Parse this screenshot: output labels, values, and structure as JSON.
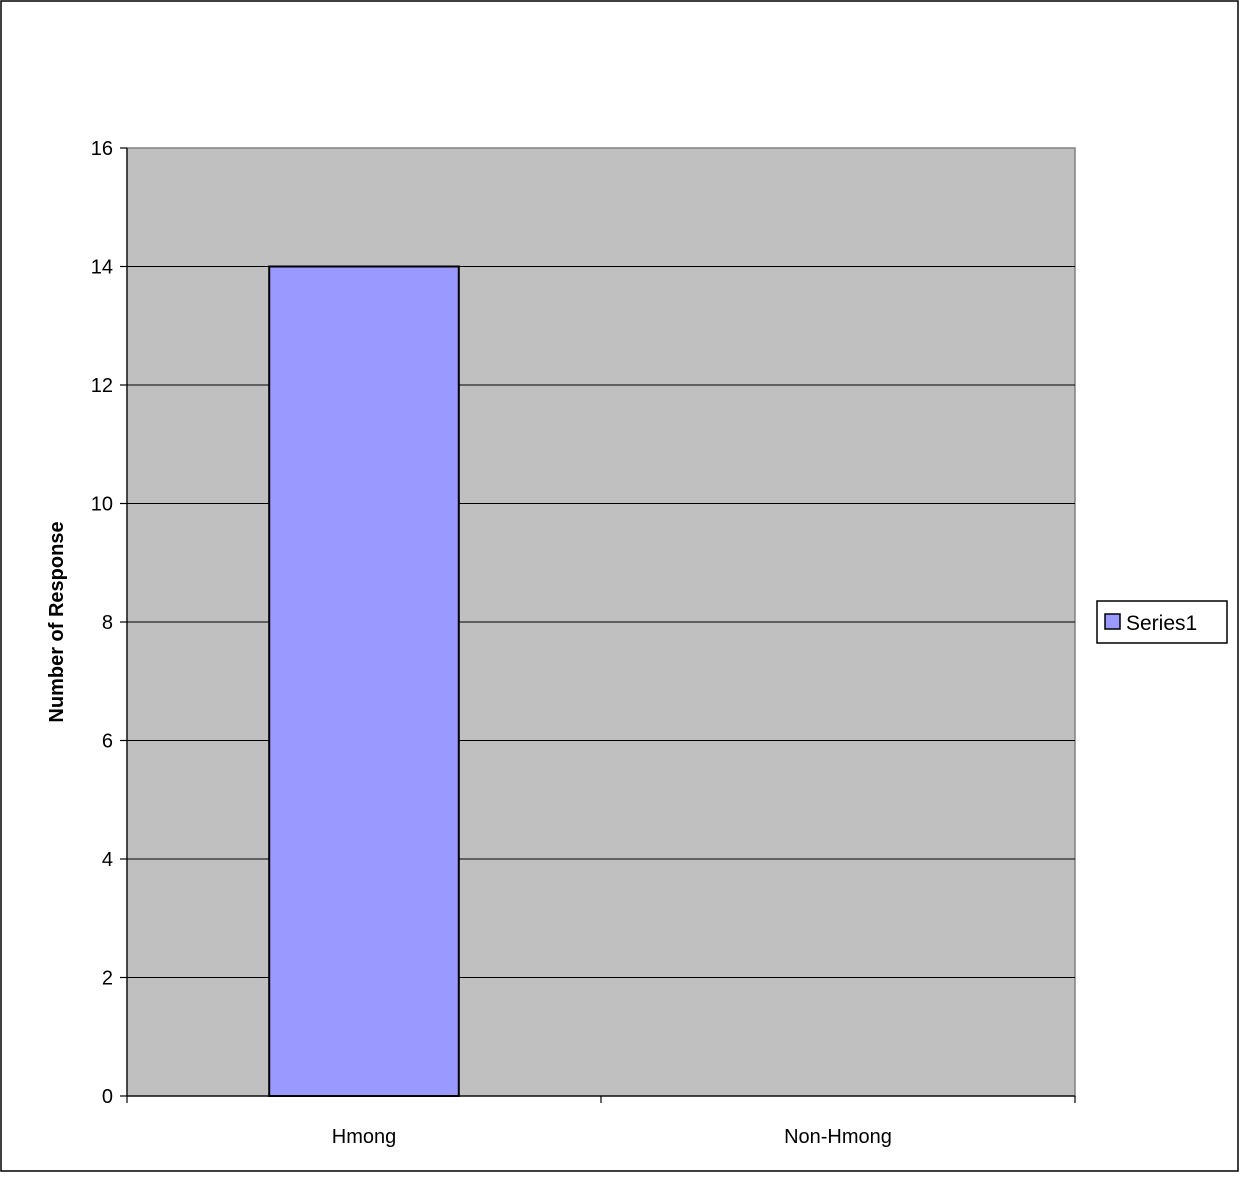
{
  "chart_data": {
    "type": "bar",
    "title": "",
    "xlabel": "",
    "ylabel": "Number of Response",
    "categories": [
      "Hmong",
      "Non-Hmong"
    ],
    "series": [
      {
        "name": "Series1",
        "values": [
          14,
          0
        ],
        "color": "#9999ff"
      }
    ],
    "ylim": [
      0,
      16
    ],
    "yticks": [
      0,
      2,
      4,
      6,
      8,
      10,
      12,
      14,
      16
    ],
    "grid": true,
    "legend_position": "right",
    "plot_background": "#c0c0c0",
    "gridline_color": "#000000",
    "bar_outline_color": "#000000"
  }
}
